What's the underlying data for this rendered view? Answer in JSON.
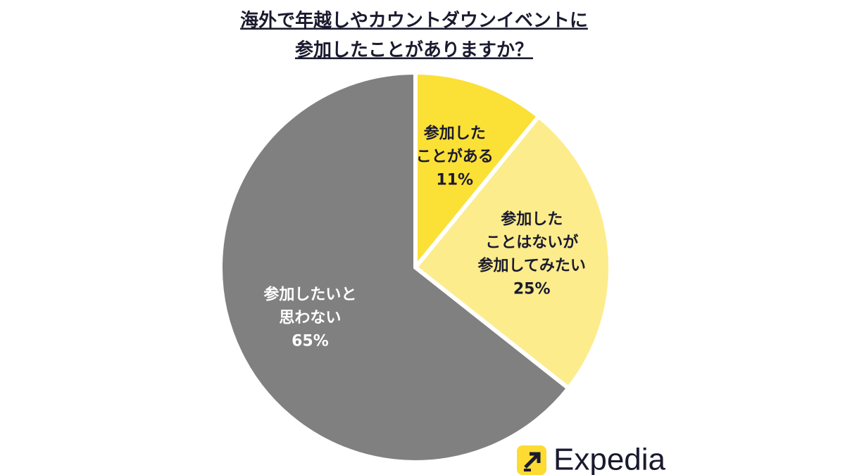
{
  "chart_data": {
    "type": "pie",
    "title": [
      "海外で年越しやカウントダウンイベントに",
      "参加したことがありますか？"
    ],
    "categories": [
      [
        "参加した",
        "ことがある"
      ],
      [
        "参加した",
        "ことはないが",
        "参加してみたい"
      ],
      [
        "参加したいと",
        "思わない"
      ]
    ],
    "values": [
      11,
      25,
      65
    ],
    "value_labels": [
      "11%",
      "25%",
      "65%"
    ],
    "colors": [
      "#fbe036",
      "#fcec8c",
      "#808080"
    ],
    "start_angle": "top",
    "direction": "clockwise"
  },
  "logo": "Expedia"
}
